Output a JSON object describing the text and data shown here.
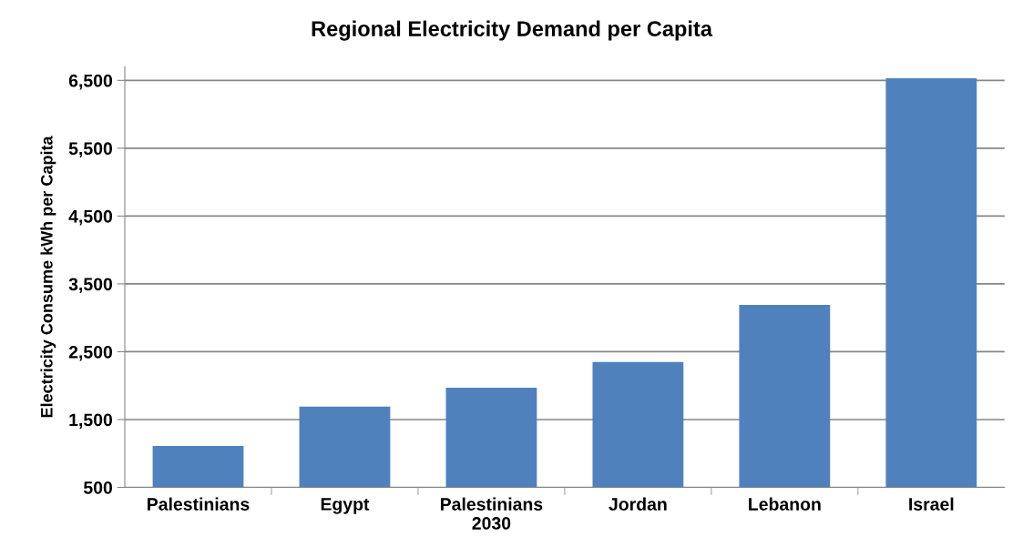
{
  "chart_data": {
    "type": "bar",
    "title": "Regional Electricity Demand per Capita",
    "ylabel": "Electricity Consume kWh per Capita",
    "categories": [
      "Palestinians",
      "Egypt",
      "Palestinians\n2030",
      "Jordan",
      "Lebanon",
      "Israel"
    ],
    "values": [
      1110,
      1690,
      1970,
      2350,
      3190,
      6530
    ],
    "color": "#4f81bd",
    "ylim": [
      500,
      6700
    ],
    "yticks": [
      {
        "value": 500,
        "label": "500"
      },
      {
        "value": 1500,
        "label": "1,500"
      },
      {
        "value": 2500,
        "label": "2,500"
      },
      {
        "value": 3500,
        "label": "3,500"
      },
      {
        "value": 4500,
        "label": "4,500"
      },
      {
        "value": 5500,
        "label": "5,500"
      },
      {
        "value": 6500,
        "label": "6,500"
      }
    ],
    "grid": "y",
    "legend": false
  }
}
